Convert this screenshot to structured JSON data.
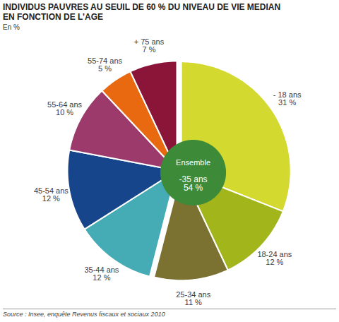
{
  "chart_data": {
    "type": "pie",
    "title": "INDIVIDUS PAUVRES AU SEUIL DE 60 % DU NIVEAU DE VIE MEDIAN\nEN FONCTION DE L’AGE",
    "subtitle": "En %",
    "source": "Source : Insee, enquête Revenus fiscaux et sociaux 2010",
    "categories": [
      "- 18 ans",
      "18-24 ans",
      "25-34 ans",
      "35-44 ans",
      "45-54 ans",
      "55-64 ans",
      "55-74 ans",
      "+ 75 ans"
    ],
    "values": [
      31,
      12,
      11,
      12,
      12,
      10,
      5,
      7
    ],
    "value_labels": [
      "31 %",
      "12 %",
      "11 %",
      "12 %",
      "12 %",
      "10 %",
      "5 %",
      "7 %"
    ],
    "colors": [
      "#d3d92f",
      "#a2b51b",
      "#7b7232",
      "#45abb5",
      "#17458b",
      "#9b3a6b",
      "#e8690f",
      "#8a1538"
    ],
    "data_labels": true,
    "center": {
      "title": "Ensemble",
      "category": "-35 ans",
      "value": 54,
      "value_label": "54 %",
      "color": "#3d8b39"
    }
  }
}
